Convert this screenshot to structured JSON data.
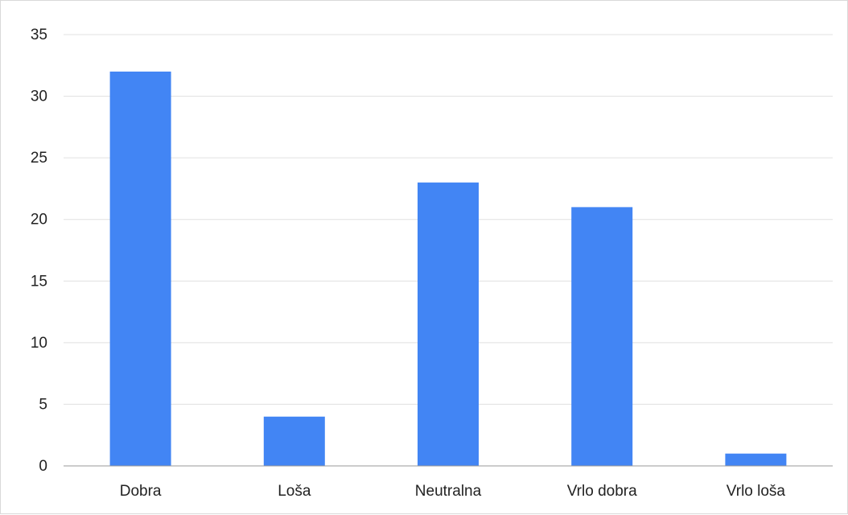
{
  "chart_data": {
    "type": "bar",
    "title": "",
    "xlabel": "",
    "ylabel": "",
    "categories": [
      "Dobra",
      "Loša",
      "Neutralna",
      "Vrlo dobra",
      "Vrlo loša"
    ],
    "values": [
      32,
      4,
      23,
      21,
      1
    ],
    "ylim": [
      0,
      35
    ],
    "yticks": [
      0,
      5,
      10,
      15,
      20,
      25,
      30,
      35
    ],
    "grid": true,
    "legend": "none",
    "colors": {
      "bar": "#4285f4",
      "grid": "#e0e0e0",
      "axis": "#999999",
      "text": "#222222"
    }
  }
}
